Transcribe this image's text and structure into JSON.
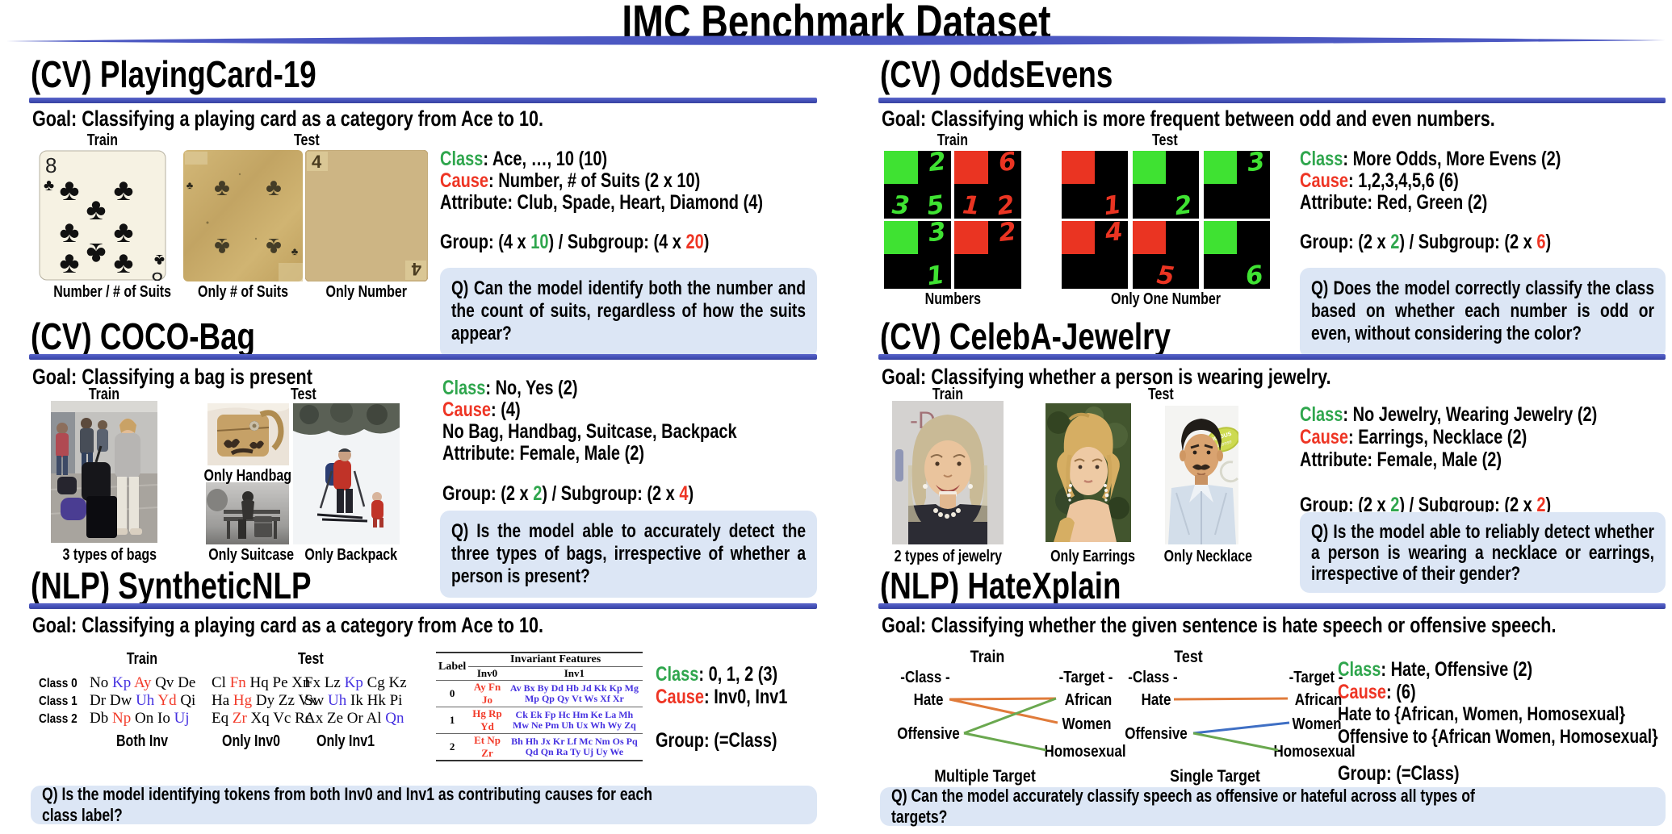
{
  "title": "IMC Benchmark Dataset",
  "colors": {
    "accent_blue": "#4350b8",
    "qbox_bg": "#dce6f5",
    "green": "#2fa64d",
    "red": "#ee3524",
    "token_blue": "#4531e0",
    "token_red": "#f23b2a",
    "edge_orange": "#e07b3a",
    "edge_green": "#6aa84f",
    "edge_blue": "#3f6fc4",
    "tile_green": "#3fe232",
    "tile_red": "#ea3422"
  },
  "panels": {
    "playingcard": {
      "heading": "(CV) PlayingCard-19",
      "goal": "Goal: Classifying a playing card as a category from Ace to 10.",
      "train_label": "Train",
      "test_label": "Test",
      "train_card_rank": "8",
      "test_card_rank": "4",
      "captions": [
        "Number / # of Suits",
        "Only # of Suits",
        "Only Number"
      ],
      "info": {
        "class_kw": "Class",
        "class_rest": ": Ace, …, 10 (10)",
        "cause_kw": "Cause",
        "cause_rest": ": Number, # of Suits (2 x 10)",
        "attribute": "Attribute: Club, Spade, Heart, Diamond (4)",
        "group_pre": "Group: (4 x ",
        "group_green": "10",
        "group_mid": ") / Subgroup: (4 x ",
        "group_red": "20",
        "group_post": ")"
      },
      "question": "Q) Can the model identify both the number and the count of suits, regardless of how the suits appear?"
    },
    "oddsevens": {
      "heading": "(CV) OddsEvens",
      "goal": "Goal: Classifying which is more frequent between odd and even numbers.",
      "train_label": "Train",
      "test_label": "Test",
      "captions": [
        "Numbers",
        "Only One Number"
      ],
      "train_tiles": [
        {
          "color": "green",
          "digits": [
            {
              "d": "2",
              "pos": "tr"
            },
            {
              "d": "3",
              "pos": "bl"
            },
            {
              "d": "5",
              "pos": "br"
            }
          ]
        },
        {
          "color": "red",
          "digits": [
            {
              "d": "6",
              "pos": "tr"
            },
            {
              "d": "1",
              "pos": "bl"
            },
            {
              "d": "2",
              "pos": "br"
            }
          ]
        },
        {
          "color": "green",
          "digits": [
            {
              "d": "3",
              "pos": "tr"
            },
            {
              "d": "1",
              "pos": "br"
            }
          ]
        },
        {
          "color": "red",
          "digits": [
            {
              "d": "2",
              "pos": "tr"
            }
          ]
        }
      ],
      "test_tiles": [
        {
          "color": "red",
          "digits": [
            {
              "d": "1",
              "pos": "br"
            }
          ]
        },
        {
          "color": "green",
          "digits": [
            {
              "d": "2",
              "pos": "br"
            }
          ]
        },
        {
          "color": "green",
          "digits": [
            {
              "d": "3",
              "pos": "tr"
            }
          ]
        },
        {
          "color": "red",
          "digits": [
            {
              "d": "4",
              "pos": "tr"
            }
          ]
        },
        {
          "color": "red",
          "digits": [
            {
              "d": "5",
              "pos": "bc"
            }
          ]
        },
        {
          "color": "green",
          "digits": [
            {
              "d": "6",
              "pos": "br"
            }
          ]
        }
      ],
      "info": {
        "class_kw": "Class",
        "class_rest": ": More Odds, More Evens (2)",
        "cause_kw": "Cause",
        "cause_rest": ": 1,2,3,4,5,6 (6)",
        "attribute": "Attribute: Red, Green (2)",
        "group_pre": "Group: (2 x ",
        "group_green": "2",
        "group_mid": ") / Subgroup: (2 x ",
        "group_red": "6",
        "group_post": ")"
      },
      "question": "Q) Does the model correctly classify the class based on whether each number is odd or even, without considering the color?"
    },
    "cocobag": {
      "heading": "(CV) COCO-Bag",
      "goal": "Goal: Classifying a bag is present",
      "train_label": "Train",
      "test_label": "Test",
      "captions": [
        "3 types of bags",
        "Only Handbag",
        "Only Suitcase",
        "Only Backpack"
      ],
      "info": {
        "class_kw": "Class",
        "class_rest": ":  No, Yes (2)",
        "cause_kw": "Cause",
        "cause_rest": ": (4)",
        "cause_line2": "No Bag, Handbag, Suitcase, Backpack",
        "attribute": "Attribute: Female, Male (2)",
        "group_pre": "Group: (2 x ",
        "group_green": "2",
        "group_mid": ") / Subgroup: (2 x ",
        "group_red": "4",
        "group_post": ")"
      },
      "question": "Q) Is the model able to accurately detect the three types of bags, irrespective of whether a person is present?"
    },
    "celeba": {
      "heading": "(CV) CelebA-Jewelry",
      "goal": "Goal: Classifying whether a person is wearing jewelry.",
      "train_label": "Train",
      "test_label": "Test",
      "captions": [
        "2 types of jewelry",
        "Only Earrings",
        "Only Necklace"
      ],
      "info": {
        "class_kw": "Class",
        "class_rest": ":  No Jewelry, Wearing Jewelry (2)",
        "cause_kw": "Cause",
        "cause_rest": ": Earrings, Necklace (2)",
        "attribute": "Attribute: Female, Male (2)",
        "group_pre": "Group: (2 x ",
        "group_green": "2",
        "group_mid": ") / Subgroup: (2 x ",
        "group_red": "2",
        "group_post": ")"
      },
      "question": "Q) Is the model able to reliably detect whether a person is wearing a necklace or earrings, irrespective of their gender?"
    },
    "syntheticnlp": {
      "heading": "(NLP) SyntheticNLP",
      "goal": "Goal: Classifying a playing card as a category from Ace to 10.",
      "train_label": "Train",
      "test_label": "Test",
      "captions": [
        "Both Inv",
        "Only Inv0",
        "Only Inv1"
      ],
      "train_rows": [
        {
          "label": "Class 0",
          "tokens": [
            {
              "t": "No"
            },
            {
              "t": "Kp",
              "c": "b"
            },
            {
              "t": "Ay",
              "c": "r"
            },
            {
              "t": "Qv"
            },
            {
              "t": "De"
            }
          ]
        },
        {
          "label": "Class 1",
          "tokens": [
            {
              "t": "Dr"
            },
            {
              "t": "Dw"
            },
            {
              "t": "Uh",
              "c": "b"
            },
            {
              "t": "Yd",
              "c": "r"
            },
            {
              "t": "Qi"
            }
          ]
        },
        {
          "label": "Class 2",
          "tokens": [
            {
              "t": "Db"
            },
            {
              "t": "Np",
              "c": "r"
            },
            {
              "t": "On"
            },
            {
              "t": "Io"
            },
            {
              "t": "Uj",
              "c": "b"
            }
          ]
        }
      ],
      "test1_rows": [
        {
          "tokens": [
            {
              "t": "Cl"
            },
            {
              "t": "Fn",
              "c": "r"
            },
            {
              "t": "Hq"
            },
            {
              "t": "Pe"
            },
            {
              "t": "Xn"
            }
          ]
        },
        {
          "tokens": [
            {
              "t": "Ha"
            },
            {
              "t": "Hg",
              "c": "r"
            },
            {
              "t": "Dy"
            },
            {
              "t": "Zz"
            },
            {
              "t": "Vx"
            }
          ]
        },
        {
          "tokens": [
            {
              "t": "Eq"
            },
            {
              "t": "Zr",
              "c": "r"
            },
            {
              "t": "Xq"
            },
            {
              "t": "Vc"
            },
            {
              "t": "Rc"
            }
          ]
        }
      ],
      "test2_rows": [
        {
          "tokens": [
            {
              "t": "Fx"
            },
            {
              "t": "Lz"
            },
            {
              "t": "Kp",
              "c": "b"
            },
            {
              "t": "Cg"
            },
            {
              "t": "Kz"
            }
          ]
        },
        {
          "tokens": [
            {
              "t": "Sw"
            },
            {
              "t": "Uh",
              "c": "b"
            },
            {
              "t": "Ik"
            },
            {
              "t": "Hk"
            },
            {
              "t": "Pi"
            }
          ]
        },
        {
          "tokens": [
            {
              "t": "Ax"
            },
            {
              "t": "Ze"
            },
            {
              "t": "Or"
            },
            {
              "t": "Al"
            },
            {
              "t": "Qn",
              "c": "b"
            }
          ]
        }
      ],
      "table": {
        "label_header": "Label",
        "span_header": "Invariant Features",
        "inv0_header": "Inv0",
        "inv1_header": "Inv1",
        "rows": [
          {
            "label": "0",
            "inv0": "Ay Fn Jo",
            "inv1": "Av Bx By Dd Hb Jd Kk Kp Mg Mp Qp Qy Vt Ws Xf Xr"
          },
          {
            "label": "1",
            "inv0": "Hg Rp Yd",
            "inv1": "Ck Ek Fp Hc Hm Ke La Mh Mw Ne Pm Uh Ux Wh Wy Zq"
          },
          {
            "label": "2",
            "inv0": "Et Np Zr",
            "inv1": "Bh Hh Jx Kr Lf Mc Nm Os Pq Qd Qn Ra Ty Uj Uy We"
          }
        ]
      },
      "info": {
        "class_kw": "Class",
        "class_rest": ":  0, 1, 2 (3)",
        "cause_kw": "Cause",
        "cause_rest": ": Inv0, Inv1",
        "group_line": "Group: (=Class)"
      },
      "question": "Q) Is the model identifying tokens from both Inv0 and Inv1 as contributing causes for each class label?"
    },
    "hatexplain": {
      "heading": "(NLP) HateXplain",
      "goal": "Goal: Classifying whether the given sentence is hate speech or offensive speech.",
      "train_graph": {
        "title": "Train",
        "class_header": "-Class -",
        "target_header": "-Target -",
        "classes": [
          "Hate",
          "Offensive"
        ],
        "targets": [
          "African",
          "Women",
          "Homosexual"
        ],
        "edges": [
          {
            "from": 0,
            "to": 0,
            "color": "orange"
          },
          {
            "from": 0,
            "to": 1,
            "color": "orange"
          },
          {
            "from": 1,
            "to": 0,
            "color": "green"
          },
          {
            "from": 1,
            "to": 2,
            "color": "green"
          }
        ],
        "caption": "Multiple Target"
      },
      "test_graph": {
        "title": "Test",
        "class_header": "-Class -",
        "target_header": "-Target -",
        "classes": [
          "Hate",
          "Offensive"
        ],
        "targets": [
          "African",
          "Women",
          "Homosexual"
        ],
        "edges": [
          {
            "from": 0,
            "to": 0,
            "color": "orange"
          },
          {
            "from": 1,
            "to": 1,
            "color": "blue"
          },
          {
            "from": 1,
            "to": 2,
            "color": "green"
          }
        ],
        "caption": "Single Target"
      },
      "info": {
        "class_kw": "Class",
        "class_rest": ":  Hate, Offensive (2)",
        "cause_kw": "Cause",
        "cause_rest": ": (6)",
        "cause_line2": "Hate to {African, Women, Homosexual}",
        "cause_line3": "Offensive to {African Women, Homosexual}",
        "group_line": "Group: (=Class)"
      },
      "question": "Q) Can the model accurately classify speech as offensive or hateful across all types of targets?"
    }
  }
}
